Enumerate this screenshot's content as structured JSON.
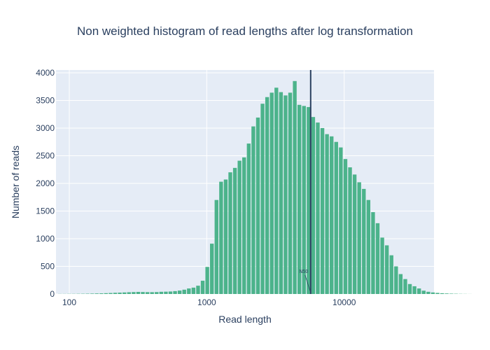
{
  "chart_data": {
    "type": "bar",
    "title": "Non weighted histogram of read lengths after log transformation",
    "xlabel": "Read length",
    "ylabel": "Number of reads",
    "xscale": "log",
    "xlim": [
      80,
      45000
    ],
    "ylim": [
      0,
      4050
    ],
    "x_ticks": [
      100,
      1000,
      10000
    ],
    "x_tick_labels": [
      "100",
      "1000",
      "10000"
    ],
    "y_ticks": [
      0,
      500,
      1000,
      1500,
      2000,
      2500,
      3000,
      3500,
      4000
    ],
    "y_tick_labels": [
      "0",
      "500",
      "1000",
      "1500",
      "2000",
      "2500",
      "3000",
      "3500",
      "4000"
    ],
    "bar_color": "#4cb38b",
    "log_bin_start": 1.915,
    "log_bin_width": 0.0335,
    "values": [
      2,
      2,
      3,
      3,
      4,
      5,
      6,
      8,
      10,
      12,
      15,
      18,
      22,
      25,
      28,
      32,
      35,
      38,
      36,
      34,
      33,
      35,
      40,
      42,
      45,
      52,
      62,
      78,
      100,
      115,
      150,
      240,
      490,
      910,
      1700,
      2030,
      2070,
      2200,
      2280,
      2410,
      2470,
      2720,
      3030,
      3190,
      3440,
      3560,
      3640,
      3730,
      3650,
      3590,
      3640,
      3850,
      3420,
      3400,
      3380,
      3200,
      3100,
      3000,
      2890,
      2850,
      2750,
      2650,
      2440,
      2290,
      2160,
      2020,
      1900,
      1700,
      1480,
      1280,
      1020,
      880,
      700,
      500,
      360,
      270,
      180,
      140,
      100,
      60,
      40,
      28,
      20,
      14,
      10,
      7,
      5,
      3,
      2,
      1
    ],
    "n50": {
      "value": 5700,
      "label": "N50",
      "color": "#2a3f5f"
    },
    "plot_bg": "#e5ecf6",
    "grid_color": "#ffffff",
    "grid": true,
    "legend": "none"
  }
}
